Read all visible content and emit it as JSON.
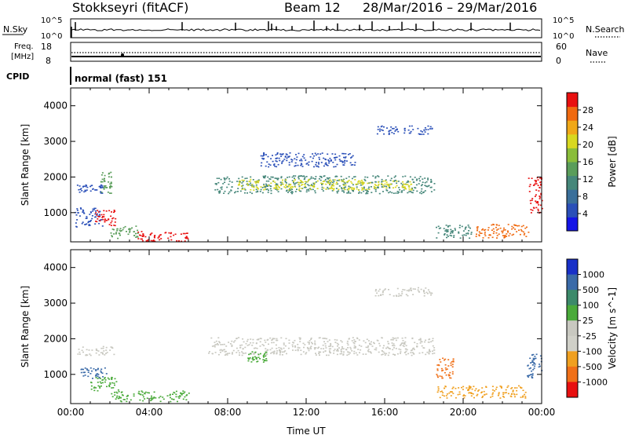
{
  "header": {
    "station": "Stokkseyri (fitACF)",
    "beam": "Beam 12",
    "date_range": "28/Mar/2016 – 29/Mar/2016"
  },
  "panels": {
    "nsky": {
      "label": "N.Sky",
      "ticks_left": [
        "10^5",
        "10^0"
      ],
      "ticks_right": [
        "10^5",
        "10^0"
      ],
      "right_label": "N.Search"
    },
    "freq": {
      "label_line1": "Freq.",
      "label_line2": "[MHz]",
      "ticks_left": [
        "18",
        "8"
      ],
      "ticks_right": [
        "60",
        "0"
      ],
      "right_label": "Nave"
    },
    "cpid": {
      "label": "CPID",
      "text": "normal (fast) 151"
    }
  },
  "chart_data": [
    {
      "type": "heatmap",
      "name": "power",
      "ylabel": "Slant Range [km]",
      "xlabel": "",
      "ylim": [
        180,
        4500
      ],
      "y_ticks": [
        "1000",
        "2000",
        "3000",
        "4000"
      ],
      "x_ticks": [],
      "colorbar": {
        "label": "Power [dB]",
        "ticks": [
          "4",
          "8",
          "12",
          "16",
          "20",
          "24",
          "28"
        ],
        "colors": [
          "#1414e6",
          "#2a4fb8",
          "#3a6f9a",
          "#46877a",
          "#5a9d5a",
          "#8abd3a",
          "#d8d820",
          "#f0a818",
          "#f06a10",
          "#e81010"
        ]
      },
      "regions": [
        {
          "t0": 0.3,
          "t1": 1.6,
          "r0": 1550,
          "r1": 1800,
          "color": "#2a4fb8"
        },
        {
          "t0": 1.5,
          "t1": 2.1,
          "r0": 1550,
          "r1": 2150,
          "color": "#5a9d5a"
        },
        {
          "t0": 0.2,
          "t1": 1.6,
          "r0": 600,
          "r1": 1150,
          "color": "#2a4fb8"
        },
        {
          "t0": 1.2,
          "t1": 2.3,
          "r0": 650,
          "r1": 1100,
          "color": "#e81010"
        },
        {
          "t0": 2.0,
          "t1": 3.4,
          "r0": 280,
          "r1": 650,
          "color": "#5a9d5a"
        },
        {
          "t0": 3.4,
          "t1": 6.0,
          "r0": 200,
          "r1": 500,
          "color": "#e81010"
        },
        {
          "t0": 7.3,
          "t1": 18.5,
          "r0": 1550,
          "r1": 2050,
          "color": "#46877a"
        },
        {
          "t0": 8.5,
          "t1": 17.5,
          "r0": 1650,
          "r1": 1950,
          "color": "#d8d820"
        },
        {
          "t0": 9.6,
          "t1": 14.6,
          "r0": 2300,
          "r1": 2700,
          "color": "#2a4fb8"
        },
        {
          "t0": 15.5,
          "t1": 18.4,
          "r0": 3200,
          "r1": 3450,
          "color": "#2a4fb8"
        },
        {
          "t0": 18.6,
          "t1": 20.4,
          "r0": 300,
          "r1": 700,
          "color": "#46877a"
        },
        {
          "t0": 20.5,
          "t1": 23.3,
          "r0": 300,
          "r1": 700,
          "color": "#f06a10"
        },
        {
          "t0": 23.3,
          "t1": 24.0,
          "r0": 1000,
          "r1": 2000,
          "color": "#e81010"
        }
      ]
    },
    {
      "type": "heatmap",
      "name": "velocity",
      "ylabel": "Slant Range [km]",
      "xlabel": "Time UT",
      "ylim": [
        180,
        4500
      ],
      "y_ticks": [
        "1000",
        "2000",
        "3000",
        "4000"
      ],
      "x_ticks": [
        "00:00",
        "04:00",
        "08:00",
        "12:00",
        "16:00",
        "20:00",
        "00:00"
      ],
      "colorbar": {
        "label": "Velocity [m s^-1]",
        "ticks": [
          "1000",
          "500",
          "100",
          "25",
          "-25",
          "-100",
          "-500",
          "-1000"
        ],
        "colors": [
          "#1830c8",
          "#3a6aa8",
          "#3c8a6a",
          "#4aaa3a",
          "#c8c8c0",
          "#d0d0c8",
          "#f0a020",
          "#f07018",
          "#e81010"
        ]
      },
      "regions": [
        {
          "t0": 7.0,
          "t1": 18.5,
          "r0": 1550,
          "r1": 2050,
          "color": "#c8c8c0"
        },
        {
          "t0": 0.3,
          "t1": 2.2,
          "r0": 1550,
          "r1": 1800,
          "color": "#c8c8c0"
        },
        {
          "t0": 0.5,
          "t1": 1.8,
          "r0": 900,
          "r1": 1200,
          "color": "#3a6aa8"
        },
        {
          "t0": 1.0,
          "t1": 2.4,
          "r0": 550,
          "r1": 950,
          "color": "#4aaa3a"
        },
        {
          "t0": 2.0,
          "t1": 6.0,
          "r0": 250,
          "r1": 550,
          "color": "#4aaa3a"
        },
        {
          "t0": 9.0,
          "t1": 10.0,
          "r0": 1350,
          "r1": 1650,
          "color": "#4aaa3a"
        },
        {
          "t0": 15.5,
          "t1": 18.4,
          "r0": 3200,
          "r1": 3450,
          "color": "#c8c8c0"
        },
        {
          "t0": 18.6,
          "t1": 19.5,
          "r0": 900,
          "r1": 1500,
          "color": "#f07018"
        },
        {
          "t0": 18.6,
          "t1": 23.2,
          "r0": 350,
          "r1": 700,
          "color": "#f0a020"
        },
        {
          "t0": 23.2,
          "t1": 24.0,
          "r0": 900,
          "r1": 1600,
          "color": "#3a6aa8"
        }
      ]
    }
  ]
}
